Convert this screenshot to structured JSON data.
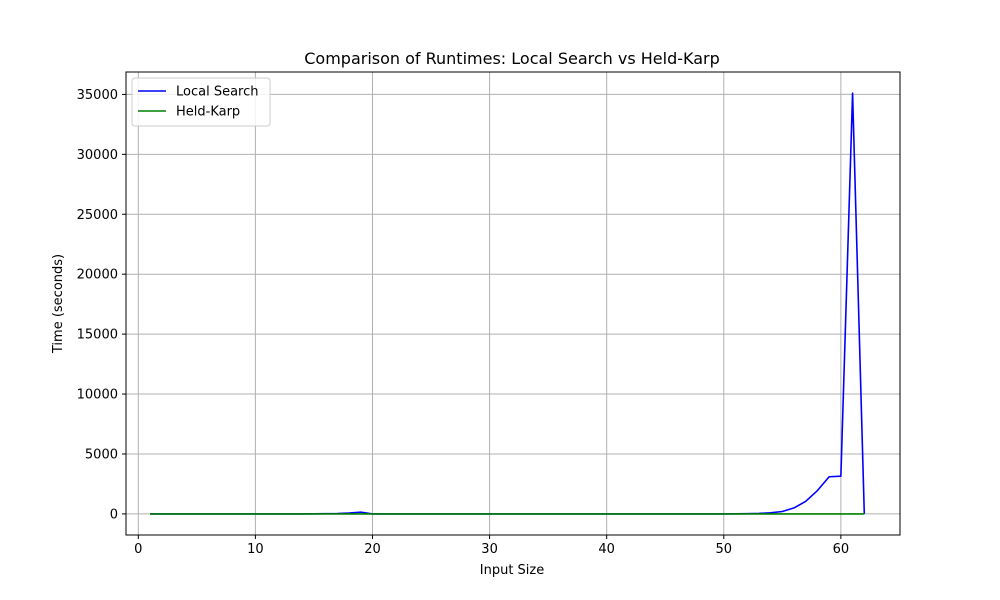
{
  "chart_data": {
    "type": "line",
    "title": "Comparison of Runtimes: Local Search vs Held-Karp",
    "xlabel": "Input Size",
    "ylabel": "Time (seconds)",
    "xlim": [
      -1.05,
      65.05
    ],
    "ylim": [
      -1760,
      36870
    ],
    "xticks": [
      0,
      10,
      20,
      30,
      40,
      50,
      60
    ],
    "yticks": [
      0,
      5000,
      10000,
      15000,
      20000,
      25000,
      30000,
      35000
    ],
    "grid": true,
    "legend_position": "top-left",
    "series": [
      {
        "name": "Local Search",
        "color": "#0000ff",
        "x": [
          1,
          2,
          3,
          4,
          5,
          6,
          7,
          8,
          9,
          10,
          11,
          12,
          13,
          14,
          15,
          16,
          17,
          18,
          19,
          20,
          21,
          22,
          23,
          24,
          25,
          26,
          27,
          28,
          29,
          30,
          31,
          32,
          33,
          34,
          35,
          36,
          37,
          38,
          39,
          40,
          41,
          42,
          43,
          44,
          45,
          46,
          47,
          48,
          49,
          50,
          51,
          52,
          53,
          54,
          55,
          56,
          57,
          58,
          59,
          60,
          61,
          62
        ],
        "y": [
          0,
          0,
          0,
          0,
          0,
          0,
          0,
          0,
          0,
          0,
          0,
          0,
          0,
          0,
          5,
          15,
          30,
          70,
          150,
          0,
          0,
          0,
          0,
          0,
          0,
          0,
          0,
          0,
          0,
          0,
          0,
          0,
          0,
          0,
          0,
          0,
          0,
          0,
          0,
          0,
          0,
          0,
          0,
          0,
          0,
          0,
          0,
          0,
          0,
          0,
          5,
          15,
          40,
          90,
          200,
          500,
          1050,
          1950,
          3100,
          3150,
          35100,
          0
        ]
      },
      {
        "name": "Held-Karp",
        "color": "#008000",
        "x": [
          1,
          2,
          3,
          4,
          5,
          6,
          7,
          8,
          9,
          10,
          11,
          12,
          13,
          14,
          15,
          16,
          17,
          18,
          19,
          20,
          21,
          22,
          23,
          24,
          25,
          26,
          27,
          28,
          29,
          30,
          31,
          32,
          33,
          34,
          35,
          36,
          37,
          38,
          39,
          40,
          41,
          42,
          43,
          44,
          45,
          46,
          47,
          48,
          49,
          50,
          51,
          52,
          53,
          54,
          55,
          56,
          57,
          58,
          59,
          60,
          61,
          62
        ],
        "y": [
          0,
          0,
          0,
          0,
          0,
          0,
          0,
          0,
          0,
          0,
          0,
          0,
          0,
          0,
          0,
          0,
          0,
          0,
          0,
          0,
          0,
          0,
          0,
          0,
          0,
          0,
          0,
          0,
          0,
          0,
          0,
          0,
          0,
          0,
          0,
          0,
          0,
          0,
          0,
          0,
          0,
          0,
          0,
          0,
          0,
          0,
          0,
          0,
          0,
          0,
          0,
          0,
          0,
          0,
          0,
          0,
          0,
          0,
          0,
          0,
          0,
          0
        ]
      }
    ]
  }
}
